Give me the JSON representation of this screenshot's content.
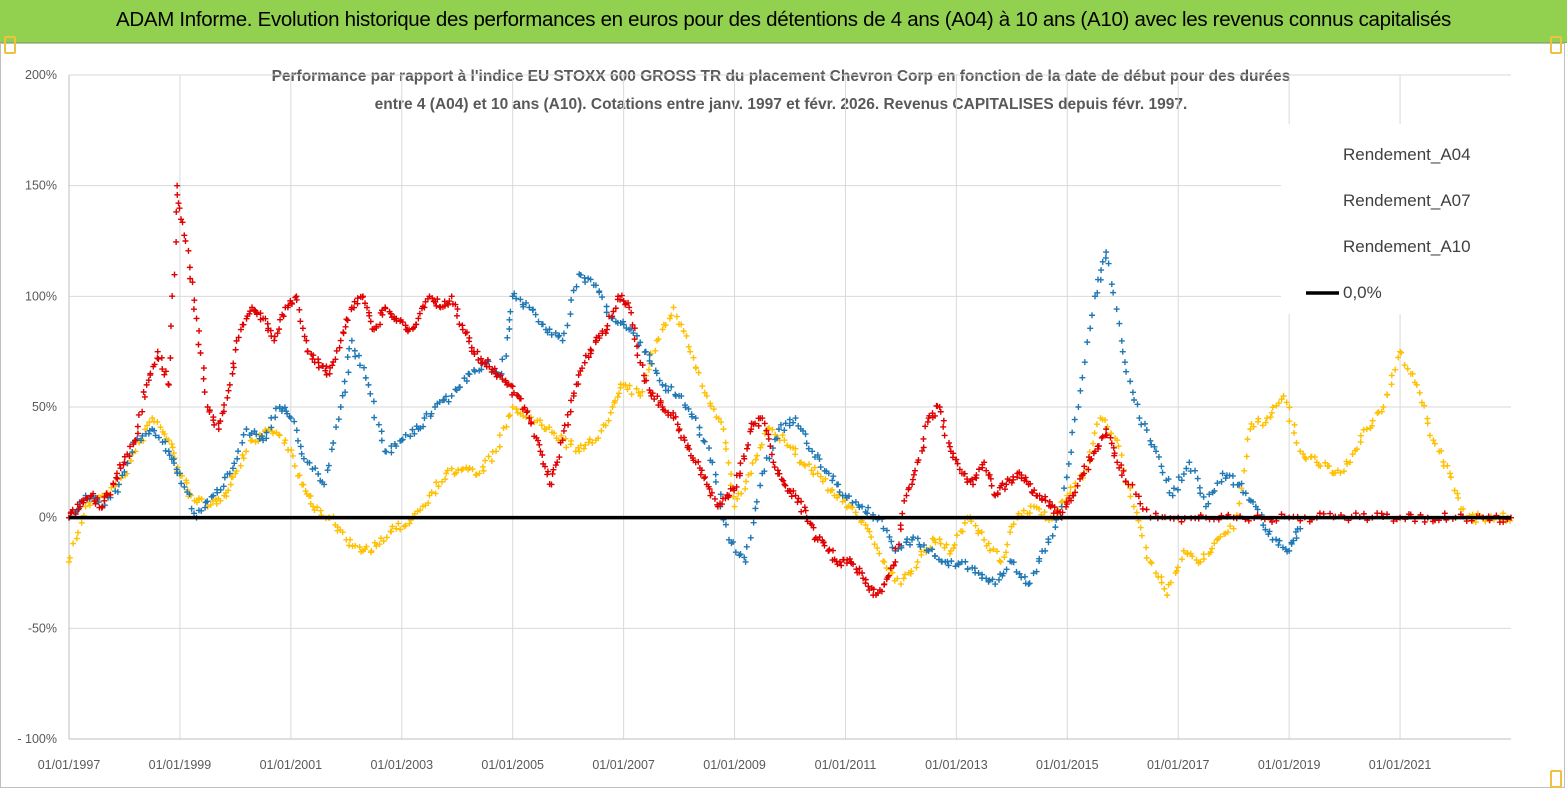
{
  "header": {
    "title": "ADAM Informe. Evolution historique des performances en euros pour des détentions de 4 ans (A04) à 10 ans (A10) avec les revenus connus capitalisés",
    "background": "#92d050"
  },
  "chart_data": {
    "type": "scatter",
    "title_line1": "Performance par rapport à l'indice EU STOXX 600 GROSS TR  du placement Chevron Corp en fonction de la date de début pour des durées",
    "title_line2": "entre 4 (A04) et 10 ans (A10). Cotations entre janv. 1997 et févr. 2026. Revenus CAPITALISES depuis févr. 1997.",
    "xlabel": "",
    "ylabel": "",
    "xlim": [
      1997.0,
      2023.0
    ],
    "ylim": [
      -100,
      200
    ],
    "x_ticks": [
      {
        "value": 1997,
        "label": "01/01/1997"
      },
      {
        "value": 1999,
        "label": "01/01/1999"
      },
      {
        "value": 2001,
        "label": "01/01/2001"
      },
      {
        "value": 2003,
        "label": "01/01/2003"
      },
      {
        "value": 2005,
        "label": "01/01/2005"
      },
      {
        "value": 2007,
        "label": "01/01/2007"
      },
      {
        "value": 2009,
        "label": "01/01/2009"
      },
      {
        "value": 2011,
        "label": "01/01/2011"
      },
      {
        "value": 2013,
        "label": "01/01/2013"
      },
      {
        "value": 2015,
        "label": "01/01/2015"
      },
      {
        "value": 2017,
        "label": "01/01/2017"
      },
      {
        "value": 2019,
        "label": "01/01/2019"
      },
      {
        "value": 2021,
        "label": "01/01/2021"
      }
    ],
    "y_ticks": [
      {
        "value": 200,
        "label": "200%"
      },
      {
        "value": 150,
        "label": "150%"
      },
      {
        "value": 100,
        "label": "100%"
      },
      {
        "value": 50,
        "label": "50%"
      },
      {
        "value": 0,
        "label": "0%"
      },
      {
        "value": -50,
        "label": "-50%"
      },
      {
        "value": -100,
        "label": "- 100%"
      }
    ],
    "grid": true,
    "legend_position": "top-right",
    "series": [
      {
        "name": "Rendement_A04",
        "color": "#ffc000",
        "marker": "plus",
        "x": [
          1997.0,
          1997.3,
          1997.6,
          1997.9,
          1998.2,
          1998.5,
          1998.8,
          1999.0,
          1999.2,
          1999.5,
          1999.8,
          2000.0,
          2000.3,
          2000.6,
          2000.9,
          2001.2,
          2001.4,
          2001.7,
          2002.0,
          2002.3,
          2002.6,
          2002.9,
          2003.2,
          2003.5,
          2003.8,
          2004.1,
          2004.4,
          2004.7,
          2005.0,
          2005.3,
          2005.6,
          2005.9,
          2006.2,
          2006.5,
          2006.8,
          2007.0,
          2007.3,
          2007.6,
          2007.9,
          2008.2,
          2008.5,
          2008.8,
          2009.0,
          2009.3,
          2009.6,
          2009.9,
          2010.2,
          2010.5,
          2010.8,
          2011.1,
          2011.4,
          2011.7,
          2012.0,
          2012.3,
          2012.6,
          2012.9,
          2013.2,
          2013.5,
          2013.8,
          2014.1,
          2014.4,
          2014.7,
          2015.0,
          2015.3,
          2015.6,
          2015.9,
          2016.2,
          2016.5,
          2016.8,
          2017.1,
          2017.4,
          2017.7,
          2018.0,
          2018.3,
          2018.6,
          2018.9,
          2019.2,
          2019.5,
          2019.8,
          2020.1,
          2020.4,
          2020.7,
          2021.0,
          2021.3,
          2021.6,
          2021.9,
          2022.2,
          2022.5,
          2022.8,
          2023.0
        ],
        "y": [
          -20,
          5,
          10,
          15,
          30,
          45,
          35,
          20,
          10,
          5,
          10,
          20,
          35,
          40,
          35,
          15,
          5,
          0,
          -10,
          -15,
          -12,
          -5,
          0,
          10,
          20,
          22,
          20,
          30,
          50,
          45,
          40,
          35,
          30,
          35,
          50,
          60,
          55,
          80,
          95,
          75,
          55,
          40,
          5,
          20,
          40,
          35,
          25,
          20,
          10,
          5,
          -5,
          -20,
          -30,
          -20,
          -10,
          -15,
          0,
          -10,
          -20,
          0,
          5,
          0,
          10,
          20,
          45,
          35,
          5,
          -20,
          -35,
          -15,
          -20,
          -10,
          -5,
          40,
          45,
          55,
          30,
          25,
          20,
          25,
          40,
          50,
          75,
          60,
          35,
          20,
          0,
          0,
          0,
          0
        ]
      },
      {
        "name": "Rendement_A07",
        "color": "#1f77b4",
        "marker": "plus",
        "x": [
          1997.0,
          1997.3,
          1997.6,
          1997.9,
          1998.2,
          1998.5,
          1998.8,
          1999.0,
          1999.3,
          1999.6,
          1999.9,
          2000.2,
          2000.5,
          2000.8,
          2001.0,
          2001.3,
          2001.6,
          2001.9,
          2002.1,
          2002.4,
          2002.7,
          2003.0,
          2003.3,
          2003.6,
          2003.9,
          2004.2,
          2004.5,
          2004.8,
          2005.0,
          2005.3,
          2005.6,
          2005.9,
          2006.2,
          2006.5,
          2006.8,
          2007.1,
          2007.4,
          2007.7,
          2008.0,
          2008.3,
          2008.6,
          2008.9,
          2009.2,
          2009.5,
          2009.8,
          2010.1,
          2010.4,
          2010.7,
          2011.0,
          2011.3,
          2011.6,
          2011.9,
          2012.2,
          2012.5,
          2012.8,
          2013.1,
          2013.4,
          2013.7,
          2014.0,
          2014.3,
          2014.6,
          2014.9,
          2015.2,
          2015.5,
          2015.7,
          2016.0,
          2016.3,
          2016.6,
          2016.9,
          2017.2,
          2017.5,
          2017.8,
          2018.1,
          2018.4,
          2018.7,
          2019.0,
          2019.2
        ],
        "y": [
          0,
          10,
          5,
          15,
          35,
          40,
          30,
          20,
          0,
          10,
          20,
          40,
          35,
          50,
          45,
          25,
          15,
          50,
          80,
          60,
          30,
          35,
          40,
          50,
          55,
          65,
          70,
          65,
          100,
          95,
          85,
          80,
          110,
          105,
          90,
          85,
          75,
          60,
          55,
          45,
          25,
          -10,
          -20,
          20,
          40,
          45,
          30,
          20,
          10,
          5,
          0,
          -15,
          -10,
          -15,
          -20,
          -20,
          -25,
          -30,
          -20,
          -30,
          -15,
          5,
          50,
          100,
          120,
          75,
          45,
          30,
          10,
          25,
          5,
          20,
          15,
          5,
          -10,
          -15,
          -5
        ]
      },
      {
        "name": "Rendement_A10",
        "color": "#e00000",
        "marker": "plus",
        "x": [
          1997.0,
          1997.2,
          1997.4,
          1997.6,
          1997.8,
          1998.0,
          1998.2,
          1998.4,
          1998.6,
          1998.8,
          1998.95,
          1999.1,
          1999.3,
          1999.5,
          1999.7,
          1999.9,
          2000.1,
          2000.3,
          2000.5,
          2000.7,
          2000.9,
          2001.1,
          2001.3,
          2001.5,
          2001.7,
          2001.9,
          2002.1,
          2002.3,
          2002.5,
          2002.7,
          2002.9,
          2003.1,
          2003.3,
          2003.5,
          2003.7,
          2003.9,
          2004.1,
          2004.3,
          2004.5,
          2004.7,
          2004.9,
          2005.1,
          2005.3,
          2005.5,
          2005.7,
          2005.9,
          2006.1,
          2006.3,
          2006.5,
          2006.7,
          2006.9,
          2007.1,
          2007.3,
          2007.5,
          2007.7,
          2007.9,
          2008.1,
          2008.3,
          2008.5,
          2008.7,
          2008.9,
          2009.1,
          2009.3,
          2009.5,
          2009.7,
          2009.9,
          2010.1,
          2010.3,
          2010.5,
          2010.7,
          2010.9,
          2011.1,
          2011.3,
          2011.5,
          2011.7,
          2011.9,
          2012.1,
          2012.3,
          2012.5,
          2012.7,
          2012.9,
          2013.1,
          2013.3,
          2013.5,
          2013.7,
          2013.9,
          2014.1,
          2014.3,
          2014.5,
          2014.7,
          2014.9,
          2015.1,
          2015.3,
          2015.5,
          2015.7,
          2015.9,
          2016.1,
          2016.5,
          2017.0,
          2017.5,
          2018.0,
          2018.5,
          2019.0,
          2019.5,
          2020.0,
          2020.5,
          2021.0,
          2021.5,
          2022.0,
          2022.5,
          2023.0
        ],
        "y": [
          0,
          5,
          10,
          5,
          15,
          25,
          35,
          60,
          75,
          60,
          150,
          125,
          90,
          50,
          40,
          60,
          85,
          95,
          90,
          80,
          95,
          100,
          75,
          70,
          65,
          80,
          95,
          100,
          85,
          95,
          90,
          85,
          90,
          100,
          95,
          100,
          85,
          75,
          70,
          65,
          60,
          55,
          45,
          30,
          15,
          35,
          55,
          70,
          80,
          85,
          100,
          95,
          70,
          55,
          50,
          45,
          35,
          25,
          15,
          5,
          10,
          20,
          40,
          45,
          25,
          15,
          10,
          0,
          -10,
          -15,
          -20,
          -20,
          -25,
          -35,
          -30,
          -20,
          10,
          25,
          45,
          50,
          30,
          20,
          15,
          25,
          10,
          15,
          20,
          15,
          10,
          5,
          0,
          10,
          20,
          30,
          40,
          25,
          15,
          0,
          0,
          0,
          0,
          0,
          0,
          0,
          0,
          0,
          0,
          0,
          0,
          0,
          0
        ]
      }
    ],
    "zero_line": {
      "name": "0,0%",
      "color": "#000000",
      "value": 0
    }
  }
}
